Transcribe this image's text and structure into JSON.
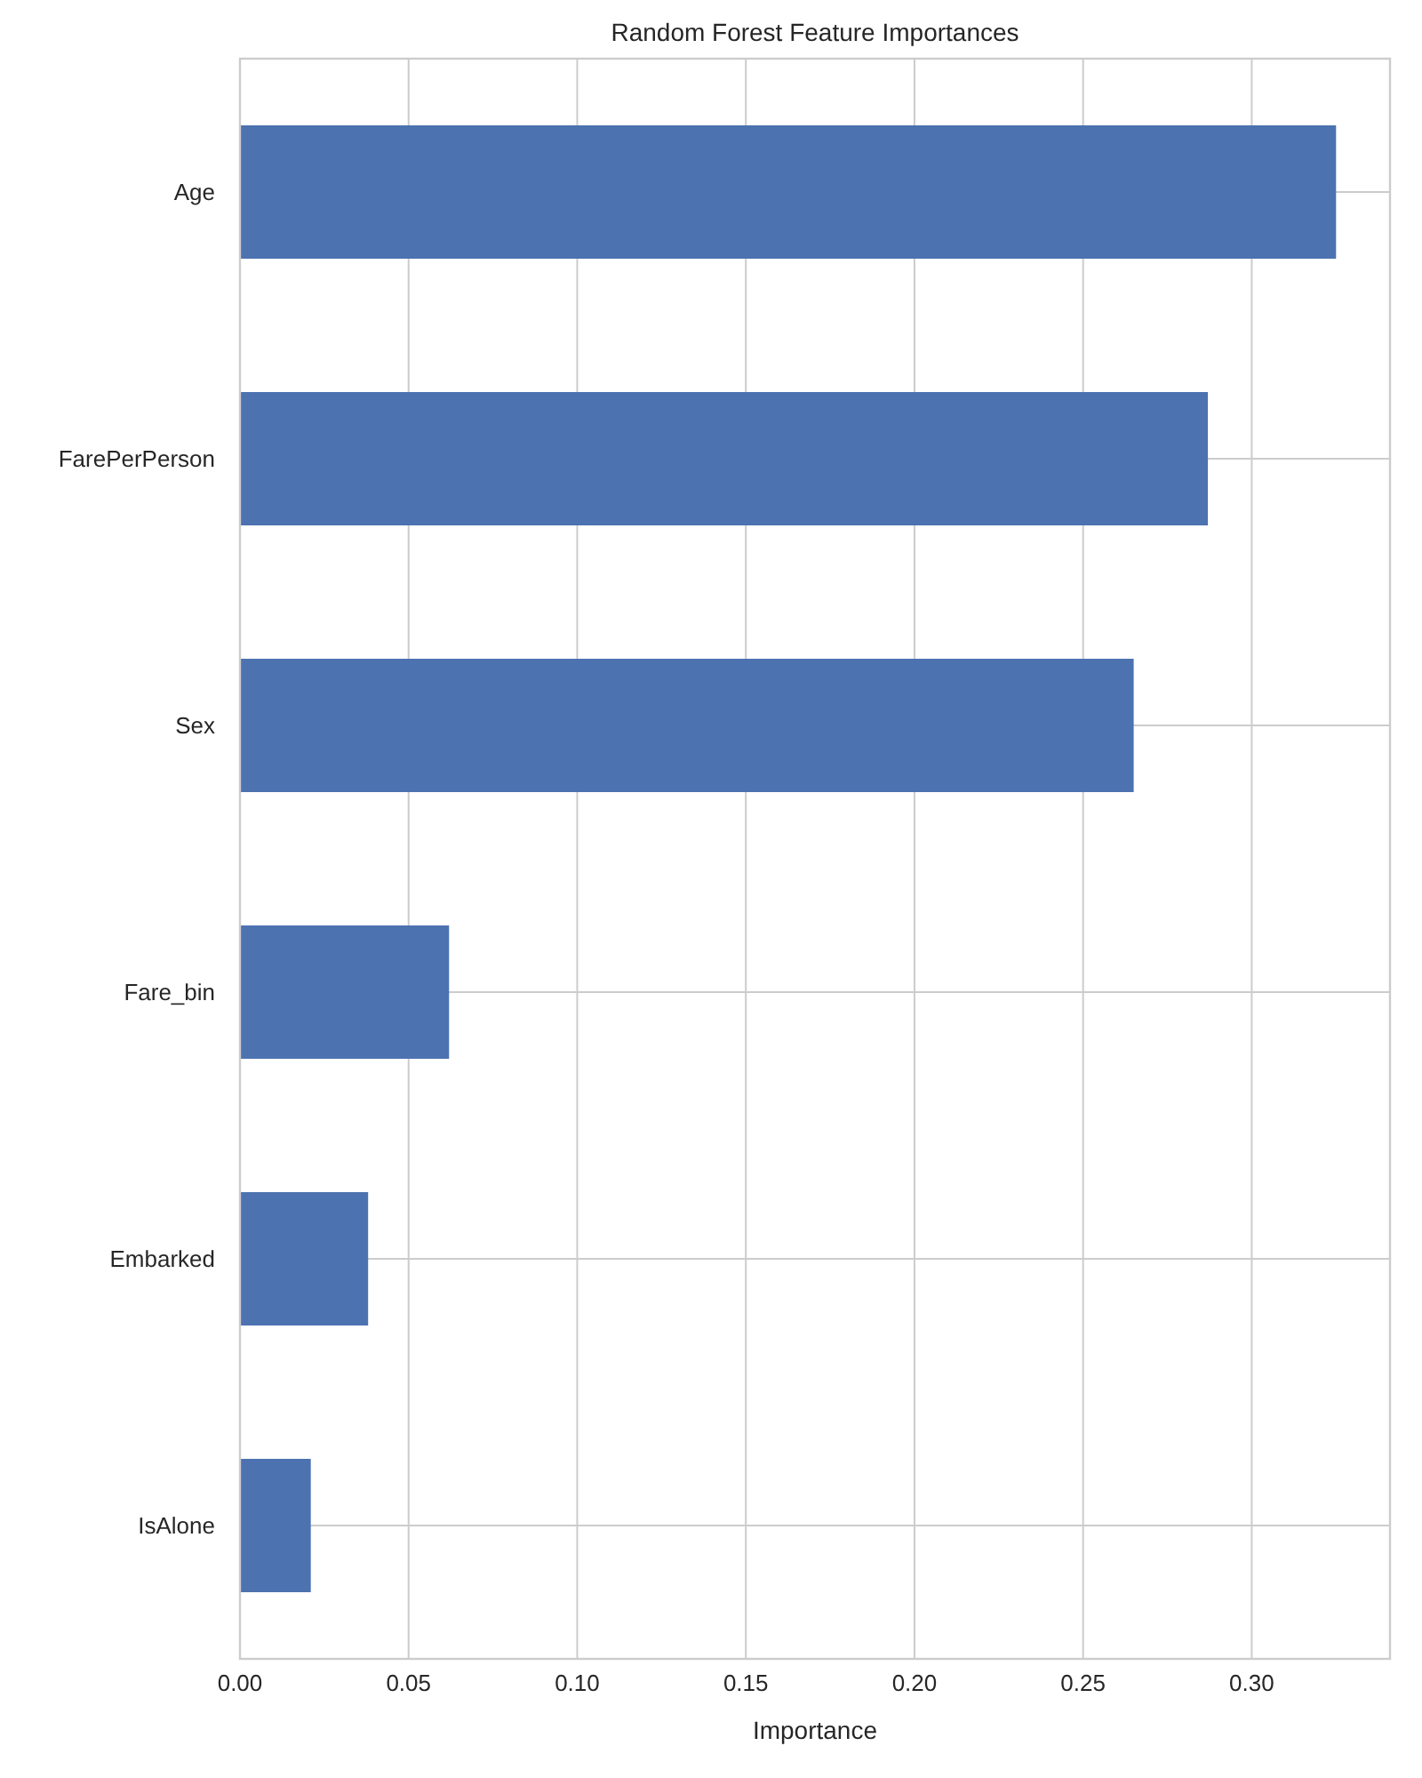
{
  "chart_data": {
    "type": "bar",
    "orientation": "horizontal",
    "title": "Random Forest Feature Importances",
    "xlabel": "Importance",
    "categories": [
      "Age",
      "FarePerPerson",
      "Sex",
      "Fare_bin",
      "Embarked",
      "IsAlone"
    ],
    "values": [
      0.325,
      0.287,
      0.265,
      0.062,
      0.038,
      0.021
    ],
    "color": "#4c72b0",
    "xlim": [
      0,
      0.341
    ],
    "xticks": [
      {
        "value": 0,
        "label": "0.00"
      },
      {
        "value": 0.05,
        "label": "0.05"
      },
      {
        "value": 0.1,
        "label": "0.10"
      },
      {
        "value": 0.15,
        "label": "0.15"
      },
      {
        "value": 0.2,
        "label": "0.20"
      },
      {
        "value": 0.25,
        "label": "0.25"
      },
      {
        "value": 0.3,
        "label": "0.30"
      }
    ],
    "grid": true
  }
}
